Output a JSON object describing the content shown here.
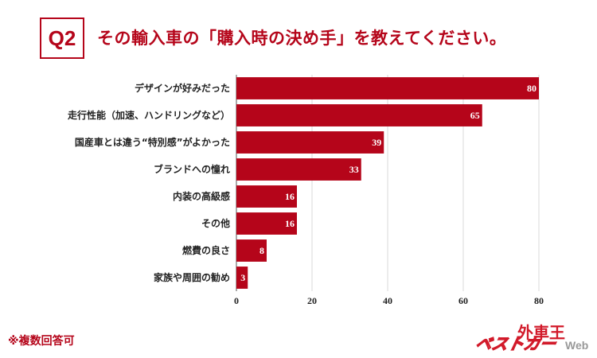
{
  "header": {
    "badge": "Q2",
    "question": "その輸入車の「購入時の決め手」を教えてください。"
  },
  "chart_data": {
    "type": "bar",
    "orientation": "horizontal",
    "title": "その輸入車の「購入時の決め手」を教えてください。",
    "categories": [
      "デザインが好みだった",
      "走行性能（加速、ハンドリングなど）",
      "国産車とは違う“特別感”がよかった",
      "ブランドへの憧れ",
      "内装の高級感",
      "その他",
      "燃費の良さ",
      "家族や周囲の勧め"
    ],
    "values": [
      80,
      65,
      39,
      33,
      16,
      16,
      8,
      3
    ],
    "xlim": [
      0,
      80
    ],
    "x_ticks": [
      0,
      20,
      40,
      60,
      80
    ],
    "xlabel": "",
    "ylabel": "",
    "grid": true,
    "bar_color": "#b5051a"
  },
  "footnote": "※複数回答可",
  "logo": {
    "main": "外車王",
    "sub": "ベストカー",
    "web": "Web"
  }
}
